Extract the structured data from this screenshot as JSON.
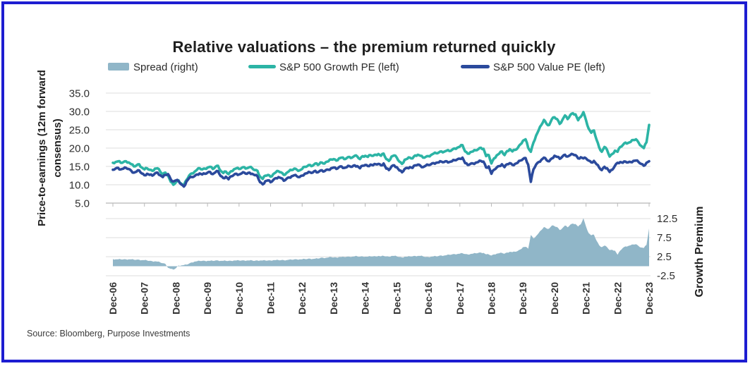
{
  "frame": {
    "border_color": "#1d1dd1"
  },
  "title": "Relative valuations – the premium returned quickly",
  "source": "Source: Bloomberg, Purpose Investments",
  "legend": [
    {
      "label": "Spread (right)",
      "color": "#90b6c8",
      "swatch": "area"
    },
    {
      "label": "S&P 500 Growth PE (left)",
      "color": "#2cb4a5",
      "swatch": "line"
    },
    {
      "label": "S&P 500 Value  PE (left)",
      "color": "#2b4a9c",
      "swatch": "line"
    }
  ],
  "left_axis": {
    "title_line1": "Price-to-earnings (12m forward",
    "title_line2": "consensus)",
    "ticks": [
      "35.0",
      "30.0",
      "25.0",
      "20.0",
      "15.0",
      "10.0",
      "5.0"
    ],
    "tick_values": [
      35,
      30,
      25,
      20,
      15,
      10,
      5
    ],
    "min": 5,
    "max": 35
  },
  "right_axis": {
    "title": "Growth Premium",
    "ticks": [
      "12.5",
      "7.5",
      "2.5",
      "-2.5"
    ],
    "tick_values": [
      12.5,
      7.5,
      2.5,
      -2.5
    ],
    "min": -2.5,
    "max": 12.5
  },
  "x_axis": {
    "labels": [
      "Dec-06",
      "Dec-07",
      "Dec-08",
      "Dec-09",
      "Dec-10",
      "Dec-11",
      "Dec-12",
      "Dec-13",
      "Dec-14",
      "Dec-15",
      "Dec-16",
      "Dec-17",
      "Dec-18",
      "Dec-19",
      "Dec-20",
      "Dec-21",
      "Dec-22",
      "Dec-23"
    ]
  },
  "chart_data": {
    "type": "line+area, dual y-axis, monthly series",
    "x_start": "Dec-06",
    "x_end": "Dec-23",
    "x_frequency": "monthly",
    "grid": true,
    "legend_position": "top",
    "series": [
      {
        "name": "S&P 500 Growth PE (left)",
        "axis": "left",
        "style": "line",
        "color": "#2cb4a5",
        "values": [
          16.0,
          16.2,
          16.4,
          16.0,
          16.2,
          16.4,
          16.1,
          15.6,
          15.0,
          15.3,
          15.6,
          14.7,
          14.2,
          14.5,
          14.1,
          13.8,
          14.4,
          14.5,
          13.6,
          12.9,
          13.3,
          12.5,
          10.8,
          10.0,
          10.7,
          11.2,
          10.3,
          9.8,
          11.3,
          12.5,
          13.1,
          13.5,
          14.1,
          14.5,
          14.2,
          14.4,
          14.7,
          14.9,
          14.3,
          14.9,
          15.2,
          13.8,
          13.2,
          13.6,
          12.9,
          13.7,
          14.2,
          14.5,
          14.3,
          14.6,
          14.8,
          14.5,
          14.8,
          14.5,
          14.0,
          13.8,
          12.2,
          11.6,
          12.5,
          12.7,
          12.2,
          12.9,
          13.4,
          13.7,
          13.4,
          12.7,
          13.2,
          13.7,
          14.0,
          14.4,
          14.1,
          13.9,
          14.3,
          14.9,
          15.1,
          15.4,
          15.2,
          15.8,
          15.4,
          16.1,
          15.8,
          16.2,
          16.4,
          16.9,
          17.0,
          16.6,
          17.2,
          17.4,
          17.0,
          17.3,
          17.6,
          17.4,
          17.9,
          17.7,
          17.0,
          17.8,
          17.9,
          17.6,
          18.1,
          17.9,
          18.2,
          18.4,
          17.9,
          18.5,
          17.0,
          16.5,
          17.7,
          18.0,
          17.4,
          16.3,
          15.7,
          16.8,
          17.1,
          17.4,
          17.2,
          18.0,
          18.2,
          17.9,
          17.4,
          17.6,
          17.8,
          18.1,
          18.5,
          18.6,
          18.8,
          19.1,
          19.0,
          19.3,
          19.2,
          19.5,
          19.9,
          20.1,
          20.4,
          20.8,
          19.1,
          18.5,
          18.9,
          19.1,
          19.4,
          19.7,
          20.1,
          19.8,
          17.8,
          18.1,
          15.8,
          17.2,
          18.0,
          18.5,
          19.1,
          18.1,
          19.2,
          19.7,
          19.1,
          19.5,
          20.0,
          21.0,
          22.0,
          22.4,
          20.1,
          19.0,
          21.5,
          23.4,
          24.9,
          26.3,
          27.7,
          26.6,
          26.3,
          27.9,
          28.4,
          27.9,
          26.6,
          27.7,
          28.9,
          27.9,
          29.0,
          29.5,
          29.2,
          27.6,
          28.5,
          29.8,
          27.6,
          25.3,
          24.2,
          24.8,
          22.3,
          20.2,
          19.0,
          20.3,
          19.5,
          17.7,
          18.4,
          19.3,
          19.0,
          20.3,
          20.8,
          21.5,
          21.4,
          21.7,
          22.2,
          22.4,
          21.5,
          20.6,
          20.0,
          21.6,
          26.3
        ]
      },
      {
        "name": "S&P 500 Value PE (left)",
        "axis": "left",
        "style": "line",
        "color": "#2b4a9c",
        "values": [
          14.1,
          14.4,
          14.6,
          14.2,
          14.4,
          14.6,
          14.3,
          13.8,
          13.3,
          13.6,
          13.9,
          13.1,
          12.6,
          13.0,
          12.7,
          12.5,
          13.1,
          13.3,
          12.6,
          12.1,
          12.7,
          12.9,
          11.5,
          10.9,
          11.2,
          11.0,
          10.1,
          9.5,
          10.9,
          11.8,
          12.1,
          12.3,
          12.8,
          13.1,
          12.8,
          13.0,
          13.3,
          13.5,
          12.9,
          13.4,
          13.7,
          12.4,
          11.8,
          12.2,
          11.5,
          12.3,
          12.7,
          13.0,
          12.8,
          13.1,
          13.3,
          13.0,
          13.3,
          13.0,
          12.6,
          12.3,
          10.7,
          10.1,
          11.0,
          11.2,
          10.7,
          11.3,
          11.8,
          12.1,
          11.8,
          11.1,
          11.6,
          12.0,
          12.3,
          12.6,
          12.3,
          12.1,
          12.5,
          13.0,
          13.2,
          13.4,
          13.3,
          13.8,
          13.4,
          13.9,
          13.6,
          14.0,
          14.1,
          14.5,
          14.7,
          14.3,
          14.8,
          15.0,
          14.6,
          14.8,
          15.1,
          14.9,
          15.3,
          15.1,
          14.5,
          15.2,
          15.4,
          15.1,
          15.5,
          15.3,
          15.6,
          15.7,
          15.3,
          15.8,
          14.4,
          14.0,
          15.0,
          15.3,
          14.8,
          13.9,
          13.4,
          14.3,
          14.6,
          14.8,
          14.6,
          15.3,
          15.5,
          15.2,
          14.8,
          15.2,
          15.4,
          15.6,
          15.9,
          16.0,
          16.1,
          16.3,
          16.2,
          16.4,
          16.2,
          16.4,
          16.7,
          16.9,
          17.1,
          17.4,
          15.9,
          15.4,
          15.7,
          15.8,
          16.0,
          16.2,
          16.5,
          16.3,
          14.7,
          15.0,
          13.0,
          14.1,
          14.7,
          15.1,
          15.6,
          14.8,
          15.6,
          15.9,
          15.4,
          15.7,
          16.0,
          16.6,
          17.0,
          17.3,
          15.5,
          10.8,
          14.2,
          15.5,
          16.2,
          16.8,
          17.4,
          16.7,
          16.4,
          17.2,
          17.9,
          17.6,
          17.1,
          17.7,
          18.2,
          17.7,
          18.1,
          18.3,
          18.1,
          17.2,
          17.5,
          17.2,
          17.2,
          16.6,
          16.1,
          16.5,
          15.6,
          14.7,
          14.0,
          14.9,
          14.5,
          13.5,
          14.1,
          15.2,
          16.0,
          16.2,
          16.0,
          16.3,
          16.1,
          16.2,
          16.5,
          16.6,
          16.2,
          15.7,
          15.2,
          16.0,
          16.4
        ]
      },
      {
        "name": "Spread (right)",
        "axis": "right",
        "style": "area",
        "color": "#90b6c8",
        "derived": "growth_pe - value_pe"
      }
    ]
  }
}
